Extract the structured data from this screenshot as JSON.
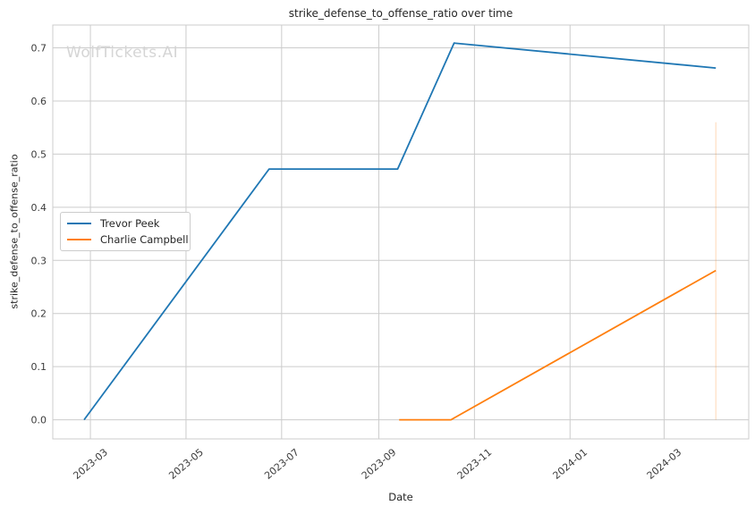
{
  "chart_data": {
    "type": "line",
    "title": "strike_defense_to_offense_ratio over time",
    "xlabel": "Date",
    "ylabel": "strike_defense_to_offense_ratio",
    "watermark": "WolfTickets.AI",
    "grid": true,
    "legend_position": "center-left",
    "x_ticks": [
      {
        "date": "2023-03-01",
        "label": "2023-03"
      },
      {
        "date": "2023-05-01",
        "label": "2023-05"
      },
      {
        "date": "2023-07-01",
        "label": "2023-07"
      },
      {
        "date": "2023-09-01",
        "label": "2023-09"
      },
      {
        "date": "2023-11-01",
        "label": "2023-11"
      },
      {
        "date": "2024-01-01",
        "label": "2024-01"
      },
      {
        "date": "2024-03-01",
        "label": "2024-03"
      }
    ],
    "y_ticks": [
      0.0,
      0.1,
      0.2,
      0.3,
      0.4,
      0.5,
      0.6,
      0.7
    ],
    "xlim": [
      "2023-02-05",
      "2024-04-24"
    ],
    "ylim": [
      -0.036,
      0.743
    ],
    "series": [
      {
        "name": "Trevor Peek",
        "color": "#1f77b4",
        "points": [
          [
            "2023-02-25",
            0.0
          ],
          [
            "2023-06-23",
            0.472
          ],
          [
            "2023-09-13",
            0.472
          ],
          [
            "2023-10-19",
            0.709
          ],
          [
            "2024-04-03",
            0.662
          ]
        ]
      },
      {
        "name": "Charlie Campbell",
        "color": "#ff7f0e",
        "points": [
          [
            "2023-09-14",
            0.0
          ],
          [
            "2023-10-17",
            0.0
          ],
          [
            "2024-04-03",
            0.281
          ]
        ]
      }
    ],
    "annotations": [
      {
        "type": "vertical-segment",
        "date": "2024-04-03",
        "y0": 0.0,
        "y1": 0.56,
        "color": "#ff7f0e",
        "opacity": 0.3
      }
    ],
    "colors": {
      "grid": "#cccccc",
      "spine": "#cccccc",
      "text": "#262626",
      "tick_text": "#3b3b3b",
      "watermark": "#d5d5d5"
    }
  }
}
